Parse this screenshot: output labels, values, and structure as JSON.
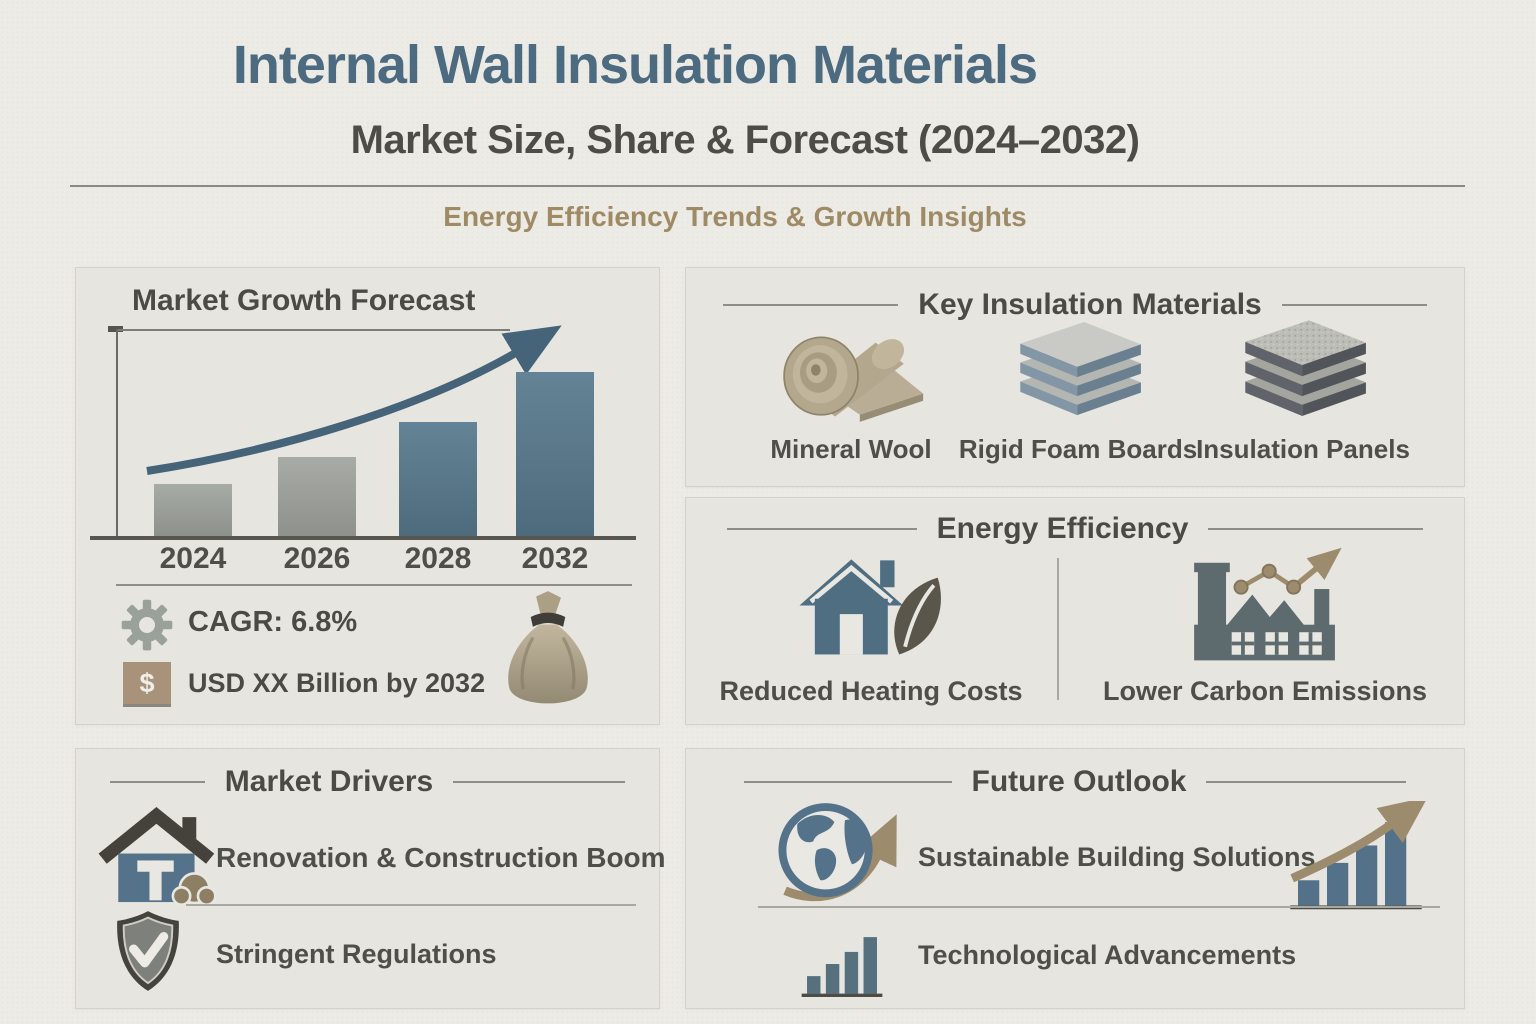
{
  "header": {
    "title": "Internal Wall Insulation Materials",
    "subtitle": "Market Size, Share & Forecast (2024–2032)",
    "tagline": "Energy Efficiency Trends & Growth Insights"
  },
  "growth": {
    "title": "Market Growth Forecast",
    "cagr": "CAGR: 6.8%",
    "dollar_symbol": "$",
    "value_label": "USD XX Billion by 2032"
  },
  "chart_data": {
    "type": "bar",
    "title": "Market Growth Forecast",
    "categories": [
      "2024",
      "2026",
      "2028",
      "2032"
    ],
    "values": [
      25,
      38,
      55,
      79
    ],
    "units": "relative bar height percent (no numeric y-axis shown)",
    "bar_colors": [
      "#a1a59f",
      "#a1a59f",
      "#587a8e",
      "#587a8e"
    ],
    "trend_arrow": "exponential upward curve with arrowhead",
    "trend_color": "#456479",
    "xlabel": "",
    "ylabel": "",
    "ylim": [
      0,
      100
    ],
    "gridlines": false,
    "annotations": [
      "CAGR: 6.8%",
      "USD XX Billion by 2032"
    ]
  },
  "materials": {
    "title": "Key Insulation Materials",
    "items": [
      {
        "label": "Mineral Wool",
        "icon": "mineral-wool-roll-icon"
      },
      {
        "label": "Rigid Foam Boards",
        "icon": "rigid-foam-boards-icon"
      },
      {
        "label": "Insulation Panels",
        "icon": "insulation-panels-icon"
      }
    ]
  },
  "efficiency": {
    "title": "Energy Efficiency",
    "items": [
      {
        "label": "Reduced Heating Costs",
        "icon": "house-leaf-icon"
      },
      {
        "label": "Lower Carbon Emissions",
        "icon": "factory-emissions-icon"
      }
    ]
  },
  "drivers": {
    "title": "Market Drivers",
    "items": [
      {
        "label": "Renovation & Construction Boom",
        "icon": "house-construction-icon"
      },
      {
        "label": "Stringent Regulations",
        "icon": "shield-check-icon"
      }
    ]
  },
  "outlook": {
    "title": "Future Outlook",
    "items": [
      {
        "label": "Sustainable Building Solutions",
        "icon": "globe-growth-icon"
      },
      {
        "label": "Technological Advancements",
        "icon": "bar-chart-icon"
      }
    ]
  },
  "colors": {
    "page_bg": "#edebe5",
    "panel_bg": "#e7e5df",
    "title_blue": "#4c6b80",
    "text_dark": "#4d4d47",
    "tan_accent": "#9e8b66",
    "bar_gray": "#a1a59f",
    "bar_blue": "#587a8e",
    "curve_blue": "#456479"
  }
}
